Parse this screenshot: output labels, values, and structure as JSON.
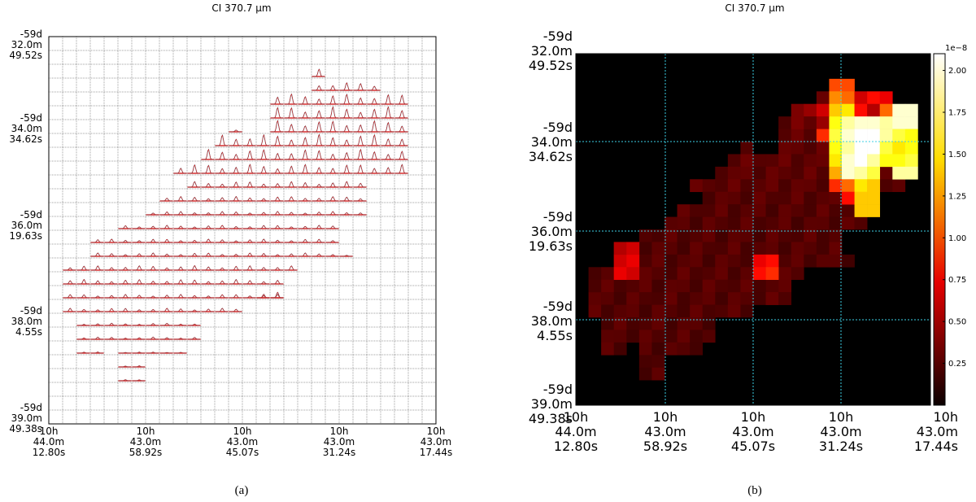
{
  "chart_data": [
    {
      "type": "spectral_grid",
      "panel_label": "(a)",
      "title": "CI 370.7 μm",
      "grid": {
        "columns": 28,
        "rows": 28
      },
      "y_tick_labels": [
        [
          "-59d",
          "32.0m",
          "49.52s"
        ],
        [
          "-59d",
          "34.0m",
          "34.62s"
        ],
        [
          "-59d",
          "36.0m",
          "19.63s"
        ],
        [
          "-59d",
          "38.0m",
          "4.55s"
        ],
        [
          "-59d",
          "39.0m",
          "49.38s"
        ]
      ],
      "x_tick_labels": [
        [
          "10h",
          "44.0m",
          "12.80s"
        ],
        [
          "10h",
          "43.0m",
          "58.92s"
        ],
        [
          "10h",
          "43.0m",
          "45.07s"
        ],
        [
          "10h",
          "43.0m",
          "31.24s"
        ],
        [
          "10h",
          "43.0m",
          "17.44s"
        ]
      ],
      "spectra_rows": [
        {
          "row": 2,
          "start": 19,
          "end": 20,
          "peak": 0.8
        },
        {
          "row": 3,
          "start": 19,
          "end": 24,
          "peak": 0.7
        },
        {
          "row": 4,
          "start": 16,
          "end": 26,
          "peak": 0.9
        },
        {
          "row": 5,
          "start": 16,
          "end": 26,
          "peak": 1.0
        },
        {
          "row": 6,
          "start": 13,
          "end": 14,
          "peak": 0.2
        },
        {
          "row": 6,
          "start": 16,
          "end": 26,
          "peak": 1.0
        },
        {
          "row": 7,
          "start": 12,
          "end": 26,
          "peak": 1.0
        },
        {
          "row": 8,
          "start": 11,
          "end": 26,
          "peak": 0.9
        },
        {
          "row": 9,
          "start": 9,
          "end": 26,
          "peak": 0.8
        },
        {
          "row": 10,
          "start": 10,
          "end": 23,
          "peak": 0.5
        },
        {
          "row": 11,
          "start": 8,
          "end": 23,
          "peak": 0.4
        },
        {
          "row": 12,
          "start": 7,
          "end": 23,
          "peak": 0.3
        },
        {
          "row": 13,
          "start": 5,
          "end": 21,
          "peak": 0.3
        },
        {
          "row": 14,
          "start": 3,
          "end": 21,
          "peak": 0.3
        },
        {
          "row": 15,
          "start": 3,
          "end": 21,
          "peak": 0.3
        },
        {
          "row": 15,
          "start": 21,
          "end": 22,
          "peak": 0.1
        },
        {
          "row": 16,
          "start": 1,
          "end": 18,
          "peak": 0.4
        },
        {
          "row": 17,
          "start": 1,
          "end": 17,
          "peak": 0.4
        },
        {
          "row": 18,
          "start": 1,
          "end": 17,
          "peak": 0.3
        },
        {
          "row": 18,
          "start": 15,
          "end": 17,
          "peak": 0.5
        },
        {
          "row": 19,
          "start": 1,
          "end": 14,
          "peak": 0.3
        },
        {
          "row": 20,
          "start": 2,
          "end": 11,
          "peak": 0.2
        },
        {
          "row": 21,
          "start": 2,
          "end": 11,
          "peak": 0.2
        },
        {
          "row": 22,
          "start": 2,
          "end": 4,
          "peak": 0.1
        },
        {
          "row": 22,
          "start": 5,
          "end": 10,
          "peak": 0.1
        },
        {
          "row": 23,
          "start": 5,
          "end": 7,
          "peak": 0.1
        },
        {
          "row": 24,
          "start": 5,
          "end": 7,
          "peak": 0.1
        }
      ]
    },
    {
      "type": "heatmap",
      "panel_label": "(b)",
      "title": "CI 370.7 μm",
      "grid": {
        "columns": 28,
        "rows": 28
      },
      "colormap": "hot",
      "colorbar": {
        "range": [
          0,
          2.1
        ],
        "ticks": [
          "0.25",
          "0.50",
          "0.75",
          "1.00",
          "1.25",
          "1.50",
          "1.75",
          "2.00"
        ],
        "exponent_label": "1e−8"
      },
      "y_tick_labels": [
        [
          "-59d",
          "32.0m",
          "49.52s"
        ],
        [
          "-59d",
          "34.0m",
          "34.62s"
        ],
        [
          "-59d",
          "36.0m",
          "19.63s"
        ],
        [
          "-59d",
          "38.0m",
          "4.55s"
        ],
        [
          "-59d",
          "39.0m",
          "49.38s"
        ]
      ],
      "x_tick_labels": [
        [
          "10h",
          "44.0m",
          "12.80s"
        ],
        [
          "10h",
          "43.0m",
          "58.92s"
        ],
        [
          "10h",
          "43.0m",
          "45.07s"
        ],
        [
          "10h",
          "43.0m",
          "31.24s"
        ],
        [
          "10h",
          "43.0m",
          "17.44s"
        ]
      ],
      "bright_cells": [
        [
          20,
          2,
          1.0
        ],
        [
          21,
          2,
          1.0
        ],
        [
          20,
          3,
          1.2
        ],
        [
          21,
          3,
          1.1
        ],
        [
          22,
          3,
          0.6
        ],
        [
          23,
          3,
          0.8
        ],
        [
          24,
          3,
          0.7
        ],
        [
          17,
          4,
          0.3
        ],
        [
          18,
          4,
          0.4
        ],
        [
          19,
          4,
          0.6
        ],
        [
          20,
          4,
          1.4
        ],
        [
          21,
          4,
          1.5
        ],
        [
          22,
          4,
          0.8
        ],
        [
          23,
          4,
          0.5
        ],
        [
          24,
          4,
          1.1
        ],
        [
          25,
          4,
          2.0
        ],
        [
          26,
          4,
          2.0
        ],
        [
          17,
          5,
          0.3
        ],
        [
          18,
          5,
          0.2
        ],
        [
          19,
          5,
          0.4
        ],
        [
          20,
          5,
          1.6
        ],
        [
          21,
          5,
          1.9
        ],
        [
          22,
          5,
          2.0
        ],
        [
          23,
          5,
          2.0
        ],
        [
          24,
          5,
          1.9
        ],
        [
          25,
          5,
          2.0
        ],
        [
          26,
          5,
          2.0
        ],
        [
          19,
          6,
          0.9
        ],
        [
          20,
          6,
          1.7
        ],
        [
          21,
          6,
          2.0
        ],
        [
          22,
          6,
          2.1
        ],
        [
          23,
          6,
          2.1
        ],
        [
          24,
          6,
          1.9
        ],
        [
          25,
          6,
          1.7
        ],
        [
          26,
          6,
          1.6
        ],
        [
          20,
          7,
          1.6
        ],
        [
          21,
          7,
          1.9
        ],
        [
          22,
          7,
          2.1
        ],
        [
          23,
          7,
          2.1
        ],
        [
          24,
          7,
          1.7
        ],
        [
          25,
          7,
          1.5
        ],
        [
          26,
          7,
          1.6
        ],
        [
          20,
          8,
          1.5
        ],
        [
          21,
          8,
          2.0
        ],
        [
          22,
          8,
          2.1
        ],
        [
          23,
          8,
          1.9
        ],
        [
          24,
          8,
          1.6
        ],
        [
          25,
          8,
          1.6
        ],
        [
          26,
          8,
          1.7
        ],
        [
          20,
          9,
          1.3
        ],
        [
          21,
          9,
          2.0
        ],
        [
          22,
          9,
          1.9
        ],
        [
          23,
          9,
          1.7
        ],
        [
          25,
          9,
          1.9
        ],
        [
          26,
          9,
          1.9
        ],
        [
          20,
          10,
          0.9
        ],
        [
          21,
          10,
          1.1
        ],
        [
          22,
          10,
          1.5
        ],
        [
          23,
          10,
          1.4
        ],
        [
          21,
          11,
          0.8
        ],
        [
          22,
          11,
          1.4
        ],
        [
          23,
          11,
          1.4
        ],
        [
          22,
          12,
          1.4
        ],
        [
          23,
          12,
          1.4
        ],
        [
          14,
          16,
          0.7
        ],
        [
          15,
          16,
          0.8
        ],
        [
          14,
          17,
          0.8
        ],
        [
          15,
          17,
          0.9
        ],
        [
          3,
          16,
          0.6
        ],
        [
          4,
          16,
          0.7
        ],
        [
          3,
          17,
          0.7
        ],
        [
          4,
          17,
          0.6
        ],
        [
          3,
          15,
          0.5
        ],
        [
          4,
          15,
          0.6
        ]
      ]
    }
  ]
}
